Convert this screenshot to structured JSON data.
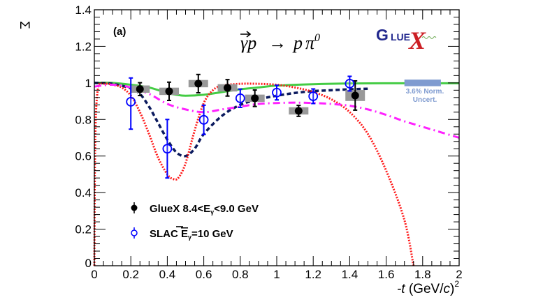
{
  "chart_data": {
    "type": "scatter",
    "panel_label": "(a)",
    "title": "γ⃗p → pπ⁰",
    "reaction": {
      "gamma": "γ",
      "p": "p",
      "arrow": "→",
      "final_p": "p",
      "pi": "π",
      "pi_charge": "0"
    },
    "logo": {
      "text_g": "G",
      "text_lue": "LUE",
      "text_x": "X"
    },
    "xlabel": "-t (GeV/c)²",
    "xlabel_parts": {
      "minus_t": "-t",
      "open": " (GeV/",
      "c": "c",
      "close": ")",
      "sup": "2"
    },
    "ylabel": "Σ",
    "xlim": [
      0,
      2
    ],
    "ylim": [
      0,
      1.4
    ],
    "x_ticks": [
      "0",
      "0.2",
      "0.4",
      "0.6",
      "0.8",
      "1",
      "1.2",
      "1.4",
      "1.6",
      "1.8",
      "2"
    ],
    "x_tick_values": [
      0,
      0.2,
      0.4,
      0.6,
      0.8,
      1.0,
      1.2,
      1.4,
      1.6,
      1.8,
      2.0
    ],
    "y_ticks": [
      "0",
      "0.2",
      "0.4",
      "0.6",
      "0.8",
      "1",
      "1.2",
      "1.4"
    ],
    "y_tick_values": [
      0,
      0.2,
      0.4,
      0.6,
      0.8,
      1.0,
      1.2,
      1.4
    ],
    "grid": false,
    "legend": {
      "placement": "bottom-left",
      "entries": [
        {
          "label": "GlueX 8.4<E",
          "sub": "γ",
          "label_rest": "<9.0 GeV",
          "marker": "filled-circle",
          "color": "#000000"
        },
        {
          "label": "SLAC ",
          "bar_E": "E",
          "sub": "γ",
          "label_rest": "=10 GeV",
          "marker": "open-circle",
          "color": "#0000ff"
        }
      ]
    },
    "normalization_band": {
      "label_line1": "3.6% Norm.",
      "label_line2": "Uncert.",
      "x_range": [
        1.7,
        1.9
      ],
      "y_range": [
        0.982,
        1.018
      ],
      "color": "#7f9bd0"
    },
    "series": [
      {
        "name": "GlueX 8.4<Eγ<9.0 GeV",
        "kind": "points",
        "marker": "filled-circle",
        "color": "#000000",
        "systematic_color": "#999999",
        "x": [
          0.25,
          0.41,
          0.57,
          0.73,
          0.88,
          1.12,
          1.43
        ],
        "y": [
          0.966,
          0.954,
          0.996,
          0.973,
          0.916,
          0.847,
          0.931
        ],
        "yerr": [
          0.035,
          0.05,
          0.05,
          0.045,
          0.045,
          0.03,
          0.08
        ],
        "syst": [
          0.02,
          0.02,
          0.02,
          0.02,
          0.02,
          0.02,
          0.03
        ]
      },
      {
        "name": "SLAC Ēγ=10 GeV",
        "kind": "points",
        "marker": "open-circle",
        "color": "#0000ff",
        "x": [
          0.2,
          0.4,
          0.6,
          0.8,
          1.0,
          1.2,
          1.4
        ],
        "y": [
          0.897,
          0.64,
          0.798,
          0.916,
          0.947,
          0.927,
          0.996
        ],
        "yerr_up": [
          0.13,
          0.16,
          0.08,
          0.05,
          0.04,
          0.04,
          0.04
        ],
        "yerr_down": [
          0.15,
          0.16,
          0.08,
          0.05,
          0.04,
          0.04,
          0.04
        ]
      },
      {
        "name": "model-green-solid",
        "kind": "curve",
        "style": "solid",
        "color": "#44cc44",
        "x": [
          0,
          0.1,
          0.2,
          0.3,
          0.4,
          0.45,
          0.5,
          0.6,
          0.7,
          0.8,
          0.9,
          1.0,
          1.2,
          1.4,
          1.6,
          1.8,
          2.0
        ],
        "y": [
          1.0,
          1.0,
          0.99,
          0.975,
          0.945,
          0.935,
          0.93,
          0.935,
          0.95,
          0.965,
          0.975,
          0.985,
          0.993,
          0.997,
          0.998,
          0.998,
          0.998
        ]
      },
      {
        "name": "model-navy-dashed",
        "kind": "curve",
        "style": "dashed",
        "color": "#0b1a5e",
        "x": [
          0,
          0.1,
          0.2,
          0.25,
          0.3,
          0.35,
          0.4,
          0.45,
          0.5,
          0.55,
          0.6,
          0.7,
          0.8,
          0.9,
          1.0,
          1.1,
          1.2,
          1.3,
          1.4,
          1.5
        ],
        "y": [
          1.0,
          0.995,
          0.97,
          0.94,
          0.87,
          0.78,
          0.69,
          0.62,
          0.6,
          0.64,
          0.72,
          0.82,
          0.88,
          0.91,
          0.93,
          0.945,
          0.955,
          0.96,
          0.965,
          0.968
        ]
      },
      {
        "name": "model-red-dotted",
        "kind": "curve",
        "style": "dotted",
        "color": "#ff1a1a",
        "x": [
          0,
          0.005,
          0.02,
          0.05,
          0.1,
          0.15,
          0.2,
          0.25,
          0.3,
          0.35,
          0.4,
          0.43,
          0.46,
          0.5,
          0.55,
          0.6,
          0.65,
          0.7,
          0.8,
          0.9,
          1.0,
          1.1,
          1.2,
          1.3,
          1.4,
          1.5,
          1.6,
          1.7,
          1.75
        ],
        "y": [
          0.0,
          0.7,
          0.97,
          0.995,
          0.99,
          0.975,
          0.93,
          0.84,
          0.72,
          0.59,
          0.5,
          0.475,
          0.48,
          0.56,
          0.74,
          0.89,
          0.96,
          0.985,
          0.995,
          0.995,
          0.99,
          0.975,
          0.95,
          0.91,
          0.84,
          0.72,
          0.52,
          0.25,
          0.0
        ]
      },
      {
        "name": "model-magenta-dashdot",
        "kind": "curve",
        "style": "dash-dot",
        "color": "#ff22ff",
        "x": [
          0,
          0.1,
          0.2,
          0.3,
          0.4,
          0.5,
          0.6,
          0.7,
          0.8,
          0.9,
          1.0,
          1.1,
          1.2,
          1.3,
          1.4,
          1.5,
          1.6,
          1.7,
          1.8,
          1.9,
          2.0
        ],
        "y": [
          0.98,
          0.99,
          0.975,
          0.94,
          0.885,
          0.855,
          0.84,
          0.855,
          0.87,
          0.885,
          0.89,
          0.892,
          0.89,
          0.885,
          0.875,
          0.855,
          0.825,
          0.79,
          0.76,
          0.73,
          0.7
        ]
      }
    ]
  }
}
